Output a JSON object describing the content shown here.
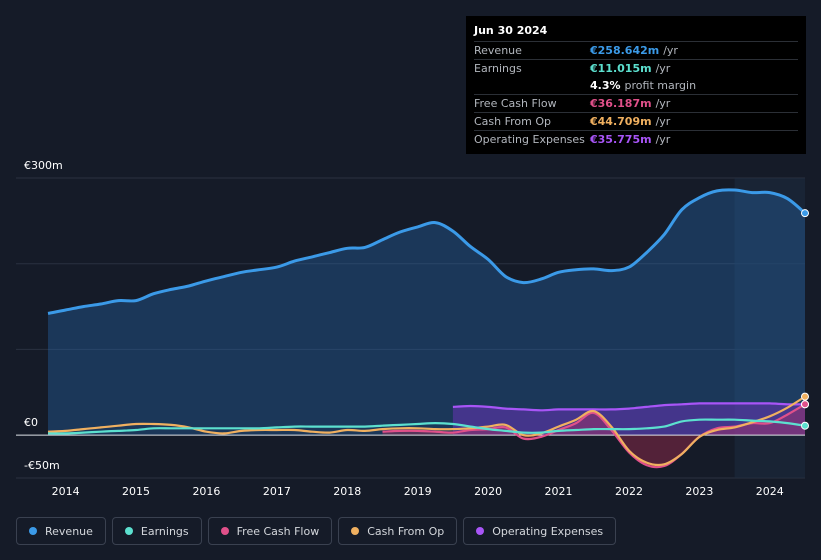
{
  "tooltip": {
    "date": "Jun 30 2024",
    "rows": [
      {
        "label": "Revenue",
        "value": "€258.642m",
        "unit": "/yr",
        "color": "#3b9ae8"
      },
      {
        "label": "Earnings",
        "value": "€11.015m",
        "unit": "/yr",
        "color": "#5ce0cf"
      },
      {
        "label": "",
        "value": "4.3%",
        "unit": "profit margin",
        "color": "#ffffff"
      },
      {
        "label": "Free Cash Flow",
        "value": "€36.187m",
        "unit": "/yr",
        "color": "#e0508a"
      },
      {
        "label": "Cash From Op",
        "value": "€44.709m",
        "unit": "/yr",
        "color": "#f0b060"
      },
      {
        "label": "Operating Expenses",
        "value": "€35.775m",
        "unit": "/yr",
        "color": "#a855f7"
      }
    ]
  },
  "legend": [
    {
      "label": "Revenue",
      "color": "#3b9ae8"
    },
    {
      "label": "Earnings",
      "color": "#5ce0cf"
    },
    {
      "label": "Free Cash Flow",
      "color": "#e0508a"
    },
    {
      "label": "Cash From Op",
      "color": "#f0b060"
    },
    {
      "label": "Operating Expenses",
      "color": "#a855f7"
    }
  ],
  "chart_data": {
    "type": "area",
    "title": "",
    "xlabel": "",
    "ylabel": "",
    "ylim": [
      -50,
      300
    ],
    "xlim": [
      2013.7,
      2024.5
    ],
    "y_tick_labels": [
      {
        "value": 300,
        "label": "€300m"
      },
      {
        "value": 0,
        "label": "€0"
      },
      {
        "value": -50,
        "label": "-€50m"
      }
    ],
    "x_ticks": [
      2014,
      2015,
      2016,
      2017,
      2018,
      2019,
      2020,
      2021,
      2022,
      2023,
      2024
    ],
    "x_tick_labels": [
      "2014",
      "2015",
      "2016",
      "2017",
      "2018",
      "2019",
      "2020",
      "2021",
      "2022",
      "2023",
      "2024"
    ],
    "highlight_from": 2023.5,
    "series": [
      {
        "name": "Revenue",
        "color": "#3b9ae8",
        "fill": true,
        "x": [
          2013.75,
          2014.0,
          2014.25,
          2014.5,
          2014.75,
          2015.0,
          2015.25,
          2015.5,
          2015.75,
          2016.0,
          2016.25,
          2016.5,
          2016.75,
          2017.0,
          2017.25,
          2017.5,
          2017.75,
          2018.0,
          2018.25,
          2018.5,
          2018.75,
          2019.0,
          2019.25,
          2019.5,
          2019.75,
          2020.0,
          2020.25,
          2020.5,
          2020.75,
          2021.0,
          2021.25,
          2021.5,
          2021.75,
          2022.0,
          2022.25,
          2022.5,
          2022.75,
          2023.0,
          2023.25,
          2023.5,
          2023.75,
          2024.0,
          2024.25,
          2024.5
        ],
        "values": [
          142,
          146,
          150,
          153,
          157,
          157,
          165,
          170,
          174,
          180,
          185,
          190,
          193,
          196,
          203,
          208,
          213,
          218,
          219,
          228,
          237,
          243,
          248,
          238,
          220,
          205,
          185,
          178,
          182,
          190,
          193,
          194,
          192,
          196,
          213,
          234,
          263,
          277,
          285,
          286,
          283,
          283,
          276,
          259
        ]
      },
      {
        "name": "Earnings",
        "color": "#5ce0cf",
        "fill": false,
        "x": [
          2013.75,
          2014.0,
          2014.25,
          2014.5,
          2014.75,
          2015.0,
          2015.25,
          2015.5,
          2015.75,
          2016.0,
          2016.25,
          2016.5,
          2016.75,
          2017.0,
          2017.25,
          2017.5,
          2017.75,
          2018.0,
          2018.25,
          2018.5,
          2018.75,
          2019.0,
          2019.25,
          2019.5,
          2019.75,
          2020.0,
          2020.25,
          2020.5,
          2020.75,
          2021.0,
          2021.25,
          2021.5,
          2021.75,
          2022.0,
          2022.25,
          2022.5,
          2022.75,
          2023.0,
          2023.25,
          2023.5,
          2023.75,
          2024.0,
          2024.25,
          2024.5
        ],
        "values": [
          2,
          2,
          3,
          4,
          5,
          6,
          8,
          8,
          8,
          8,
          8,
          8,
          8,
          9,
          10,
          10,
          10,
          10,
          10,
          11,
          12,
          13,
          14,
          13,
          10,
          7,
          5,
          3,
          3,
          5,
          6,
          7,
          7,
          7,
          8,
          10,
          16,
          18,
          18,
          18,
          17,
          16,
          14,
          11
        ]
      },
      {
        "name": "Free Cash Flow",
        "color": "#e0508a",
        "fill": true,
        "x": [
          2018.5,
          2018.75,
          2019.0,
          2019.25,
          2019.5,
          2019.75,
          2020.0,
          2020.25,
          2020.5,
          2020.75,
          2021.0,
          2021.25,
          2021.5,
          2021.75,
          2022.0,
          2022.25,
          2022.5,
          2022.75,
          2023.0,
          2023.25,
          2023.5,
          2023.75,
          2024.0,
          2024.25,
          2024.5
        ],
        "values": [
          4,
          5,
          5,
          4,
          3,
          6,
          7,
          9,
          -4,
          -2,
          6,
          14,
          26,
          6,
          -20,
          -35,
          -36,
          -22,
          -2,
          8,
          10,
          14,
          14,
          24,
          36
        ]
      },
      {
        "name": "Cash From Op",
        "color": "#f0b060",
        "fill": false,
        "x": [
          2013.75,
          2014.0,
          2014.25,
          2014.5,
          2014.75,
          2015.0,
          2015.25,
          2015.5,
          2015.75,
          2016.0,
          2016.25,
          2016.5,
          2016.75,
          2017.0,
          2017.25,
          2017.5,
          2017.75,
          2018.0,
          2018.25,
          2018.5,
          2018.75,
          2019.0,
          2019.25,
          2019.5,
          2019.75,
          2020.0,
          2020.25,
          2020.5,
          2020.75,
          2021.0,
          2021.25,
          2021.5,
          2021.75,
          2022.0,
          2022.25,
          2022.5,
          2022.75,
          2023.0,
          2023.25,
          2023.5,
          2023.75,
          2024.0,
          2024.25,
          2024.5
        ],
        "values": [
          4,
          5,
          7,
          9,
          11,
          13,
          13,
          12,
          9,
          4,
          2,
          5,
          6,
          6,
          6,
          4,
          3,
          6,
          5,
          7,
          8,
          8,
          7,
          7,
          8,
          10,
          12,
          0,
          2,
          10,
          18,
          28,
          10,
          -18,
          -32,
          -34,
          -22,
          -2,
          6,
          9,
          15,
          22,
          32,
          45
        ]
      },
      {
        "name": "Operating Expenses",
        "color": "#a855f7",
        "fill": true,
        "x": [
          2019.5,
          2019.75,
          2020.0,
          2020.25,
          2020.5,
          2020.75,
          2021.0,
          2021.25,
          2021.5,
          2021.75,
          2022.0,
          2022.25,
          2022.5,
          2022.75,
          2023.0,
          2023.25,
          2023.5,
          2023.75,
          2024.0,
          2024.25,
          2024.5
        ],
        "values": [
          33,
          34,
          33,
          31,
          30,
          29,
          30,
          30,
          30,
          30,
          31,
          33,
          35,
          36,
          37,
          37,
          37,
          37,
          37,
          36,
          36
        ]
      }
    ]
  }
}
